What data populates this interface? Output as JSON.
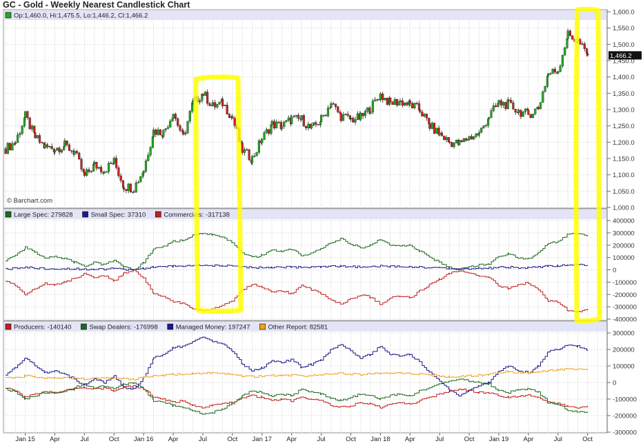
{
  "title": "GC - Gold - Weekly Nearest Candlestick Chart",
  "chart_data": [
    {
      "type": "candlestick",
      "name": "price",
      "legend": "Op:1,460.0, Hi:1,475.5, Lo:1,446.2, Cl:1,466.2",
      "legend_color": "#22aa22",
      "watermark": "© Barchart.com",
      "last_label": "1,466.2",
      "last_value": 1466.2,
      "ylim": [
        1000,
        1600
      ],
      "yticks": [
        "1,000.0",
        "1,050.0",
        "1,100.0",
        "1,150.0",
        "1,200.0",
        "1,250.0",
        "1,300.0",
        "1,350.0",
        "1,400.0",
        "1,450.0",
        "1,500.0",
        "1,550.0",
        "1,600.0"
      ],
      "ytick_values": [
        1000,
        1050,
        1100,
        1150,
        1200,
        1250,
        1300,
        1350,
        1400,
        1450,
        1500,
        1550,
        1600
      ],
      "period": "monthly approx closes Nov 2014 - Oct 2019 (weekly candles interpolated)",
      "closes": [
        1180,
        1200,
        1280,
        1215,
        1185,
        1180,
        1190,
        1170,
        1095,
        1130,
        1115,
        1140,
        1065,
        1060,
        1115,
        1235,
        1230,
        1290,
        1215,
        1320,
        1350,
        1310,
        1320,
        1275,
        1175,
        1150,
        1210,
        1255,
        1250,
        1270,
        1270,
        1240,
        1270,
        1320,
        1280,
        1270,
        1275,
        1305,
        1345,
        1320,
        1325,
        1315,
        1300,
        1250,
        1225,
        1200,
        1195,
        1215,
        1225,
        1280,
        1320,
        1315,
        1295,
        1285,
        1305,
        1410,
        1420,
        1530,
        1510,
        1466.2
      ],
      "up_color": "#22aa22",
      "down_color": "#cc2222"
    },
    {
      "type": "line",
      "name": "cot-legacy",
      "ylim": [
        -400000,
        400000
      ],
      "yticks": [
        "400000",
        "300000",
        "200000",
        "100000",
        "0",
        "-100000",
        "-200000",
        "-300000",
        "-400000"
      ],
      "ytick_values": [
        400000,
        300000,
        200000,
        100000,
        0,
        -100000,
        -200000,
        -300000,
        -400000
      ],
      "series": [
        {
          "name": "Large Spec",
          "legend": "Large Spec: 279828",
          "color": "#1e6b1e",
          "values": [
            80000,
            120000,
            180000,
            140000,
            100000,
            110000,
            90000,
            60000,
            30000,
            60000,
            40000,
            80000,
            20000,
            0,
            60000,
            170000,
            190000,
            230000,
            240000,
            280000,
            300000,
            280000,
            260000,
            220000,
            140000,
            100000,
            120000,
            160000,
            150000,
            170000,
            110000,
            140000,
            170000,
            220000,
            250000,
            210000,
            180000,
            200000,
            250000,
            200000,
            190000,
            200000,
            150000,
            100000,
            60000,
            20000,
            0,
            20000,
            40000,
            50000,
            110000,
            130000,
            100000,
            90000,
            140000,
            220000,
            230000,
            290000,
            300000,
            279828
          ]
        },
        {
          "name": "Small Spec",
          "legend": "Small Spec: 37310",
          "color": "#1a1a8c",
          "values": [
            5000,
            10000,
            20000,
            15000,
            10000,
            12000,
            10000,
            8000,
            5000,
            8000,
            6000,
            10000,
            4000,
            2000,
            10000,
            25000,
            25000,
            30000,
            30000,
            35000,
            38000,
            35000,
            32000,
            30000,
            22000,
            18000,
            20000,
            22000,
            22000,
            24000,
            18000,
            20000,
            22000,
            26000,
            28000,
            26000,
            22000,
            24000,
            30000,
            26000,
            25000,
            26000,
            22000,
            18000,
            15000,
            10000,
            8000,
            10000,
            12000,
            14000,
            20000,
            22000,
            18000,
            16000,
            22000,
            30000,
            32000,
            38000,
            40000,
            37310
          ]
        },
        {
          "name": "Commercials",
          "legend": "Commercials: -317138",
          "color": "#c02020",
          "values": [
            -85000,
            -130000,
            -200000,
            -155000,
            -110000,
            -122000,
            -100000,
            -68000,
            -35000,
            -68000,
            -46000,
            -90000,
            -24000,
            -2000,
            -70000,
            -195000,
            -215000,
            -260000,
            -270000,
            -315000,
            -338000,
            -315000,
            -292000,
            -250000,
            -162000,
            -118000,
            -140000,
            -182000,
            -172000,
            -194000,
            -128000,
            -160000,
            -192000,
            -246000,
            -278000,
            -236000,
            -202000,
            -224000,
            -280000,
            -226000,
            -215000,
            -226000,
            -172000,
            -118000,
            -75000,
            -30000,
            -8000,
            -30000,
            -52000,
            -64000,
            -130000,
            -152000,
            -118000,
            -106000,
            -162000,
            -250000,
            -262000,
            -328000,
            -340000,
            -317138
          ]
        }
      ]
    },
    {
      "type": "line",
      "name": "cot-disaggregated",
      "ylim": [
        -300000,
        300000
      ],
      "yticks": [
        "300000",
        "200000",
        "100000",
        "0",
        "-100000",
        "-200000",
        "-300000"
      ],
      "ytick_values": [
        300000,
        200000,
        100000,
        0,
        -100000,
        -200000,
        -300000
      ],
      "series": [
        {
          "name": "Producers",
          "legend": "Producers: -140140",
          "color": "#c02020",
          "values": [
            -30000,
            -50000,
            -90000,
            -70000,
            -50000,
            -60000,
            -50000,
            -40000,
            -30000,
            -40000,
            -35000,
            -50000,
            -30000,
            -20000,
            -40000,
            -90000,
            -100000,
            -120000,
            -110000,
            -140000,
            -150000,
            -140000,
            -130000,
            -120000,
            -90000,
            -80000,
            -90000,
            -110000,
            -100000,
            -110000,
            -90000,
            -100000,
            -110000,
            -140000,
            -150000,
            -140000,
            -120000,
            -130000,
            -150000,
            -130000,
            -125000,
            -130000,
            -110000,
            -90000,
            -70000,
            -50000,
            -40000,
            -50000,
            -60000,
            -60000,
            -80000,
            -90000,
            -80000,
            -75000,
            -90000,
            -120000,
            -125000,
            -145000,
            -150000,
            -140140
          ]
        },
        {
          "name": "Swap Dealers",
          "legend": "Swap Dealers: -176998",
          "color": "#1e6b1e",
          "values": [
            -40000,
            -60000,
            -100000,
            -80000,
            -60000,
            -60000,
            -50000,
            -30000,
            -10000,
            -30000,
            -20000,
            -40000,
            -10000,
            0,
            -40000,
            -110000,
            -120000,
            -140000,
            -150000,
            -170000,
            -190000,
            -180000,
            -160000,
            -130000,
            -80000,
            -50000,
            -60000,
            -80000,
            -70000,
            -80000,
            -40000,
            -60000,
            -70000,
            -100000,
            -110000,
            -90000,
            -70000,
            -80000,
            -100000,
            -80000,
            -70000,
            -80000,
            -50000,
            -30000,
            -10000,
            10000,
            20000,
            10000,
            0,
            -10000,
            -50000,
            -60000,
            -40000,
            -40000,
            -60000,
            -120000,
            -130000,
            -170000,
            -180000,
            -176998
          ]
        },
        {
          "name": "Managed Money",
          "legend": "Managed Money: 197247",
          "color": "#1a1a8c",
          "values": [
            50000,
            90000,
            150000,
            100000,
            60000,
            70000,
            50000,
            20000,
            -20000,
            20000,
            0,
            40000,
            -30000,
            -40000,
            30000,
            150000,
            170000,
            210000,
            220000,
            250000,
            270000,
            250000,
            230000,
            190000,
            110000,
            70000,
            90000,
            130000,
            120000,
            140000,
            90000,
            110000,
            140000,
            200000,
            230000,
            190000,
            150000,
            170000,
            220000,
            170000,
            160000,
            170000,
            120000,
            60000,
            10000,
            -50000,
            -80000,
            -50000,
            -20000,
            0,
            70000,
            100000,
            70000,
            60000,
            100000,
            190000,
            200000,
            230000,
            220000,
            197247
          ]
        },
        {
          "name": "Other Report",
          "legend": "Other Report: 82581",
          "color": "#f0a020",
          "values": [
            30000,
            30000,
            40000,
            35000,
            30000,
            30000,
            28000,
            25000,
            22000,
            25000,
            24000,
            28000,
            22000,
            20000,
            30000,
            40000,
            45000,
            50000,
            50000,
            55000,
            58000,
            55000,
            52000,
            50000,
            40000,
            35000,
            38000,
            42000,
            42000,
            45000,
            40000,
            42000,
            45000,
            52000,
            55000,
            52000,
            50000,
            52000,
            58000,
            55000,
            55000,
            55000,
            50000,
            45000,
            40000,
            35000,
            35000,
            40000,
            45000,
            50000,
            60000,
            65000,
            62000,
            60000,
            65000,
            75000,
            78000,
            82000,
            84000,
            82581
          ]
        }
      ]
    }
  ],
  "xaxis": {
    "labels": [
      "Jan 15",
      "Apr",
      "Jul",
      "Oct",
      "Jan 16",
      "Apr",
      "Jul",
      "Oct",
      "Jan 17",
      "Apr",
      "Jul",
      "Oct",
      "Jan 18",
      "Apr",
      "Jul",
      "Oct",
      "Jan 19",
      "Apr",
      "Jul",
      "Oct"
    ],
    "first_month_index": 2,
    "step_months": 3
  }
}
